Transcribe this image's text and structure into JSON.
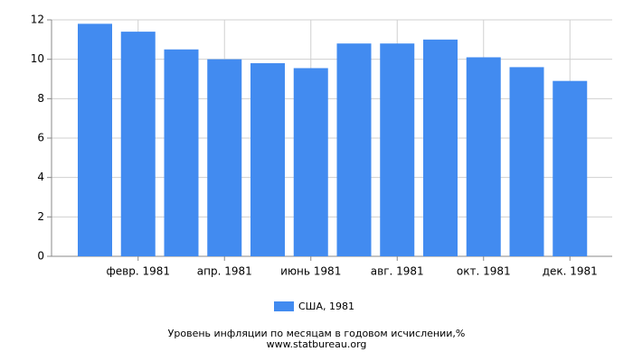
{
  "chart_data": {
    "type": "bar",
    "title": "Уровень инфляции по месяцам в годовом исчислении,%",
    "source": "www.statbureau.org",
    "categories": [
      null,
      "февр. 1981",
      null,
      "апр. 1981",
      null,
      "июнь 1981",
      null,
      "авг. 1981",
      null,
      "окт. 1981",
      null,
      "дек. 1981"
    ],
    "series": [
      {
        "name": "США, 1981",
        "color": "#428bf0",
        "values": [
          11.8,
          11.4,
          10.5,
          10.0,
          9.8,
          9.55,
          10.8,
          10.8,
          11.0,
          10.1,
          9.6,
          8.9
        ]
      }
    ],
    "ylim": [
      0,
      12
    ],
    "yticks": [
      0,
      2,
      4,
      6,
      8,
      10,
      12
    ],
    "grid": true
  }
}
